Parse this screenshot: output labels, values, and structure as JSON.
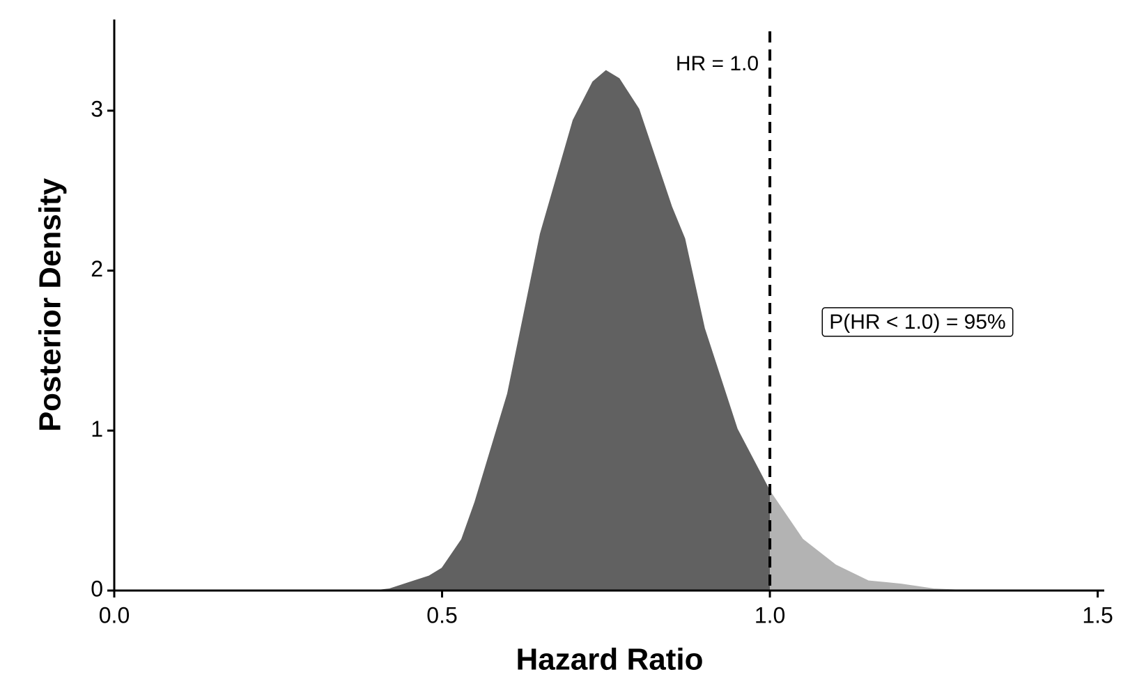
{
  "chart_data": {
    "type": "area",
    "x_label": "Hazard Ratio",
    "y_label": "Posterior Density",
    "x": [
      0.4,
      0.42,
      0.45,
      0.48,
      0.5,
      0.53,
      0.55,
      0.6,
      0.65,
      0.7,
      0.73,
      0.75,
      0.77,
      0.8,
      0.85,
      0.87,
      0.9,
      0.95,
      1.0,
      1.05,
      1.1,
      1.15,
      1.2,
      1.25,
      1.3
    ],
    "series": [
      {
        "color": "#616161",
        "values": [
          0,
          0.01,
          0.05,
          0.09,
          0.14,
          0.32,
          0.55,
          1.23,
          2.23,
          2.94,
          3.18,
          3.25,
          3.2,
          3.01,
          2.4,
          2.2,
          1.64,
          1.01,
          0.62,
          null,
          null,
          null,
          null,
          null,
          null
        ]
      },
      {
        "color": "#b3b3b3",
        "values": [
          null,
          null,
          null,
          null,
          null,
          null,
          null,
          null,
          null,
          null,
          null,
          null,
          null,
          null,
          null,
          null,
          null,
          null,
          0.62,
          0.32,
          0.16,
          0.06,
          0.04,
          0.01,
          0
        ]
      }
    ],
    "xlim": [
      0,
      1.51
    ],
    "ylim": [
      0,
      3.57
    ],
    "xticks": [
      {
        "value": 0,
        "label": "0.0"
      },
      0.5,
      {
        "value": 1,
        "label": "1.0"
      },
      1.5
    ],
    "yticks": [
      0,
      1,
      2,
      3
    ],
    "reference_line": {
      "x": 1,
      "label": "HR = 1.0"
    },
    "annotation": "P(HR < 1.0) = 95%"
  }
}
